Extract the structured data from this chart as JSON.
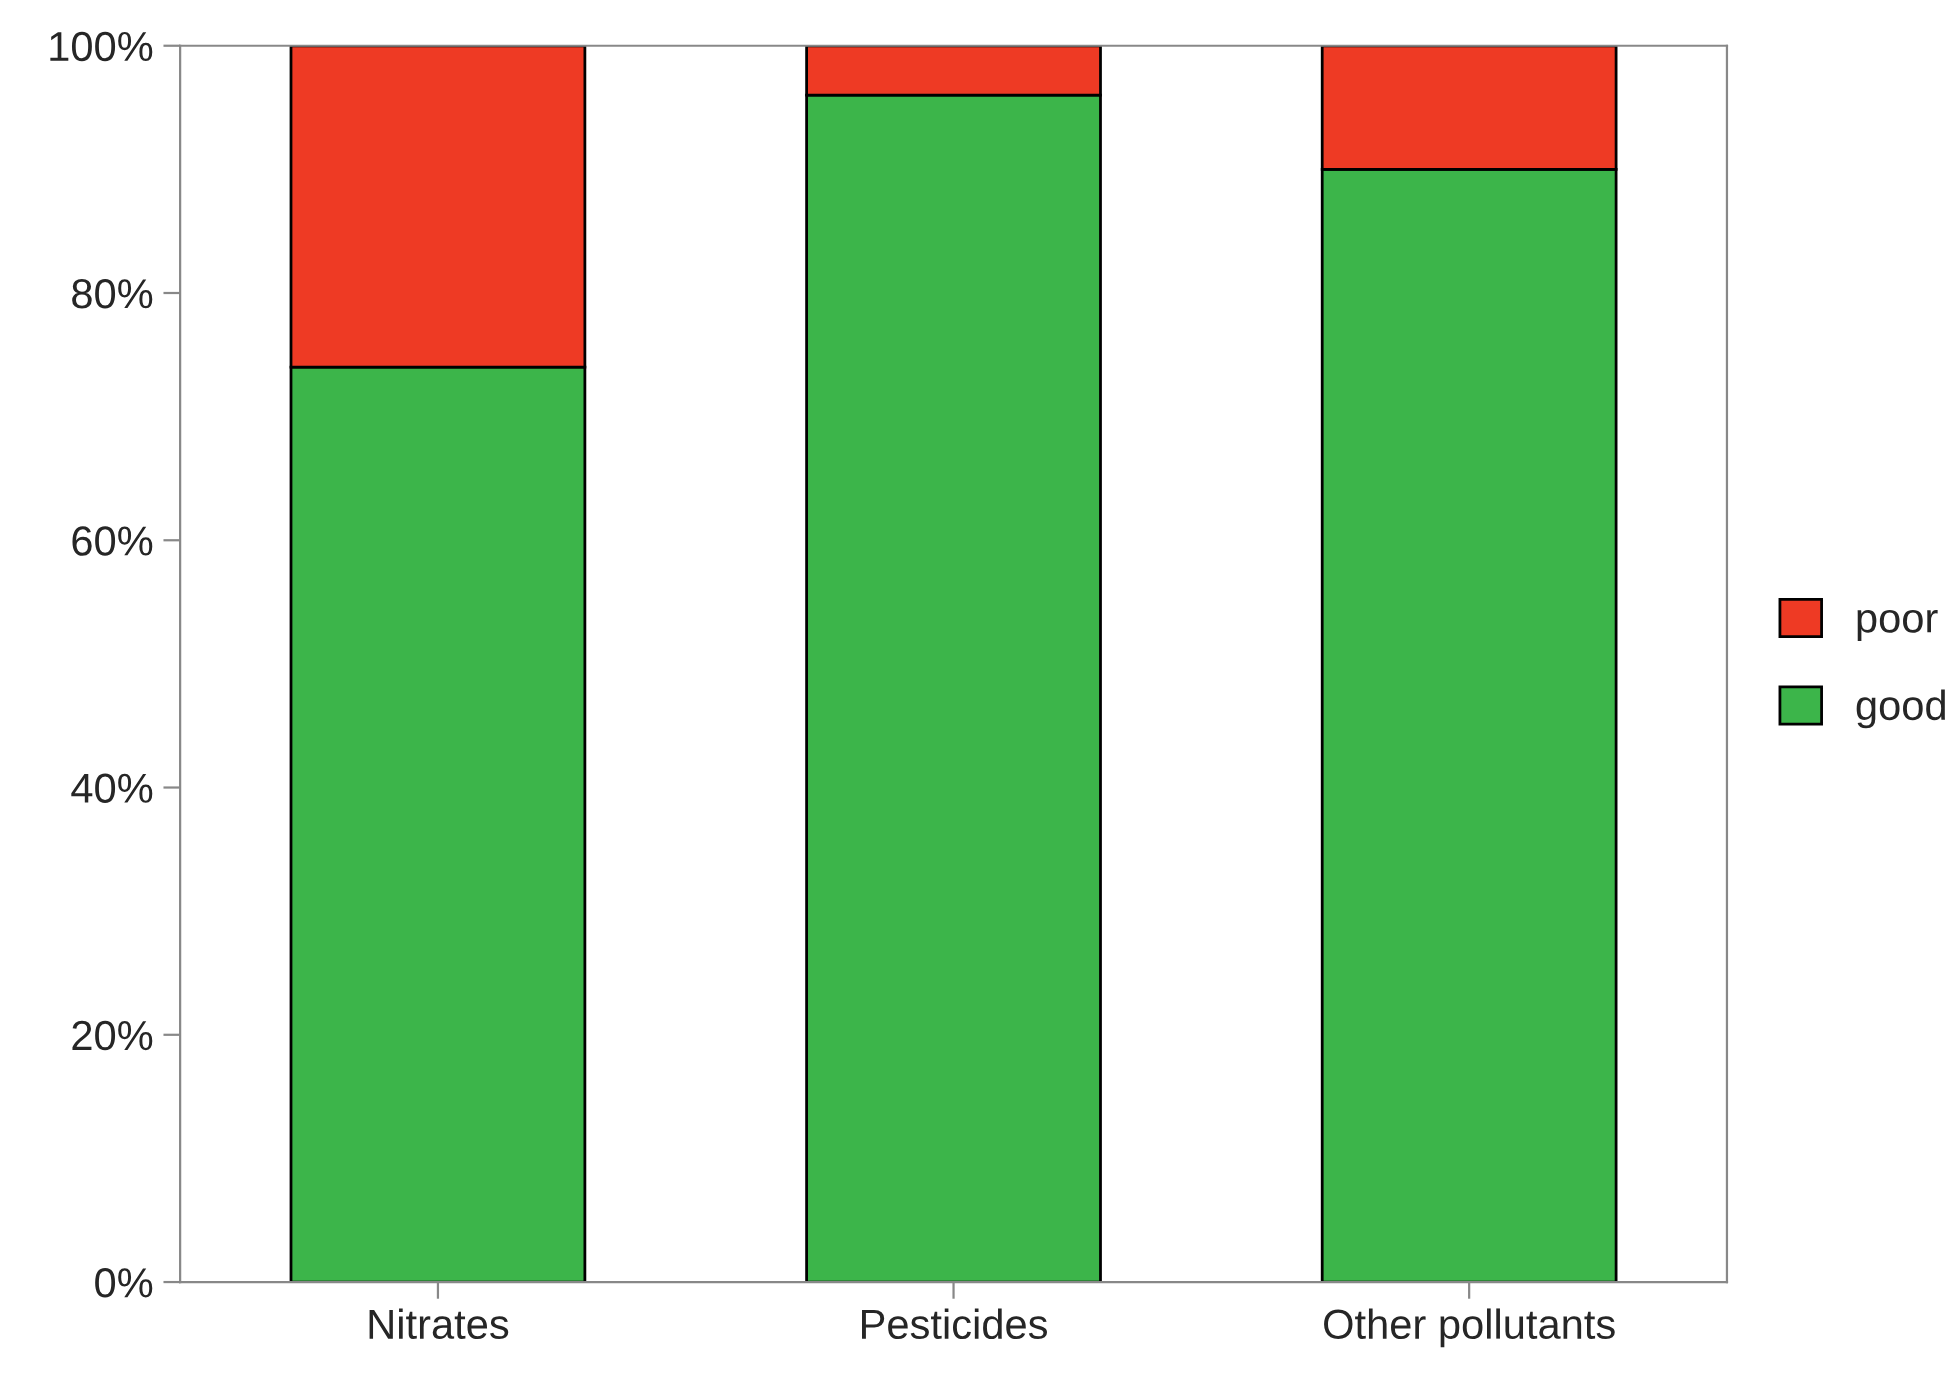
{
  "chart_data": {
    "type": "bar",
    "stacked": true,
    "categories": [
      "Nitrates",
      "Pesticides",
      "Other pollutants"
    ],
    "series": [
      {
        "name": "good",
        "color": "#3cb54a",
        "values": [
          74,
          96,
          90
        ]
      },
      {
        "name": "poor",
        "color": "#ee3a24",
        "values": [
          26,
          4,
          10
        ]
      }
    ],
    "ylim": [
      0,
      100
    ],
    "yticks": [
      {
        "value": 0,
        "label": "0%"
      },
      {
        "value": 20,
        "label": "20%"
      },
      {
        "value": 40,
        "label": "40%"
      },
      {
        "value": 60,
        "label": "60%"
      },
      {
        "value": 80,
        "label": "80%"
      },
      {
        "value": 100,
        "label": "100%"
      }
    ],
    "grid": false,
    "legend": "right"
  }
}
